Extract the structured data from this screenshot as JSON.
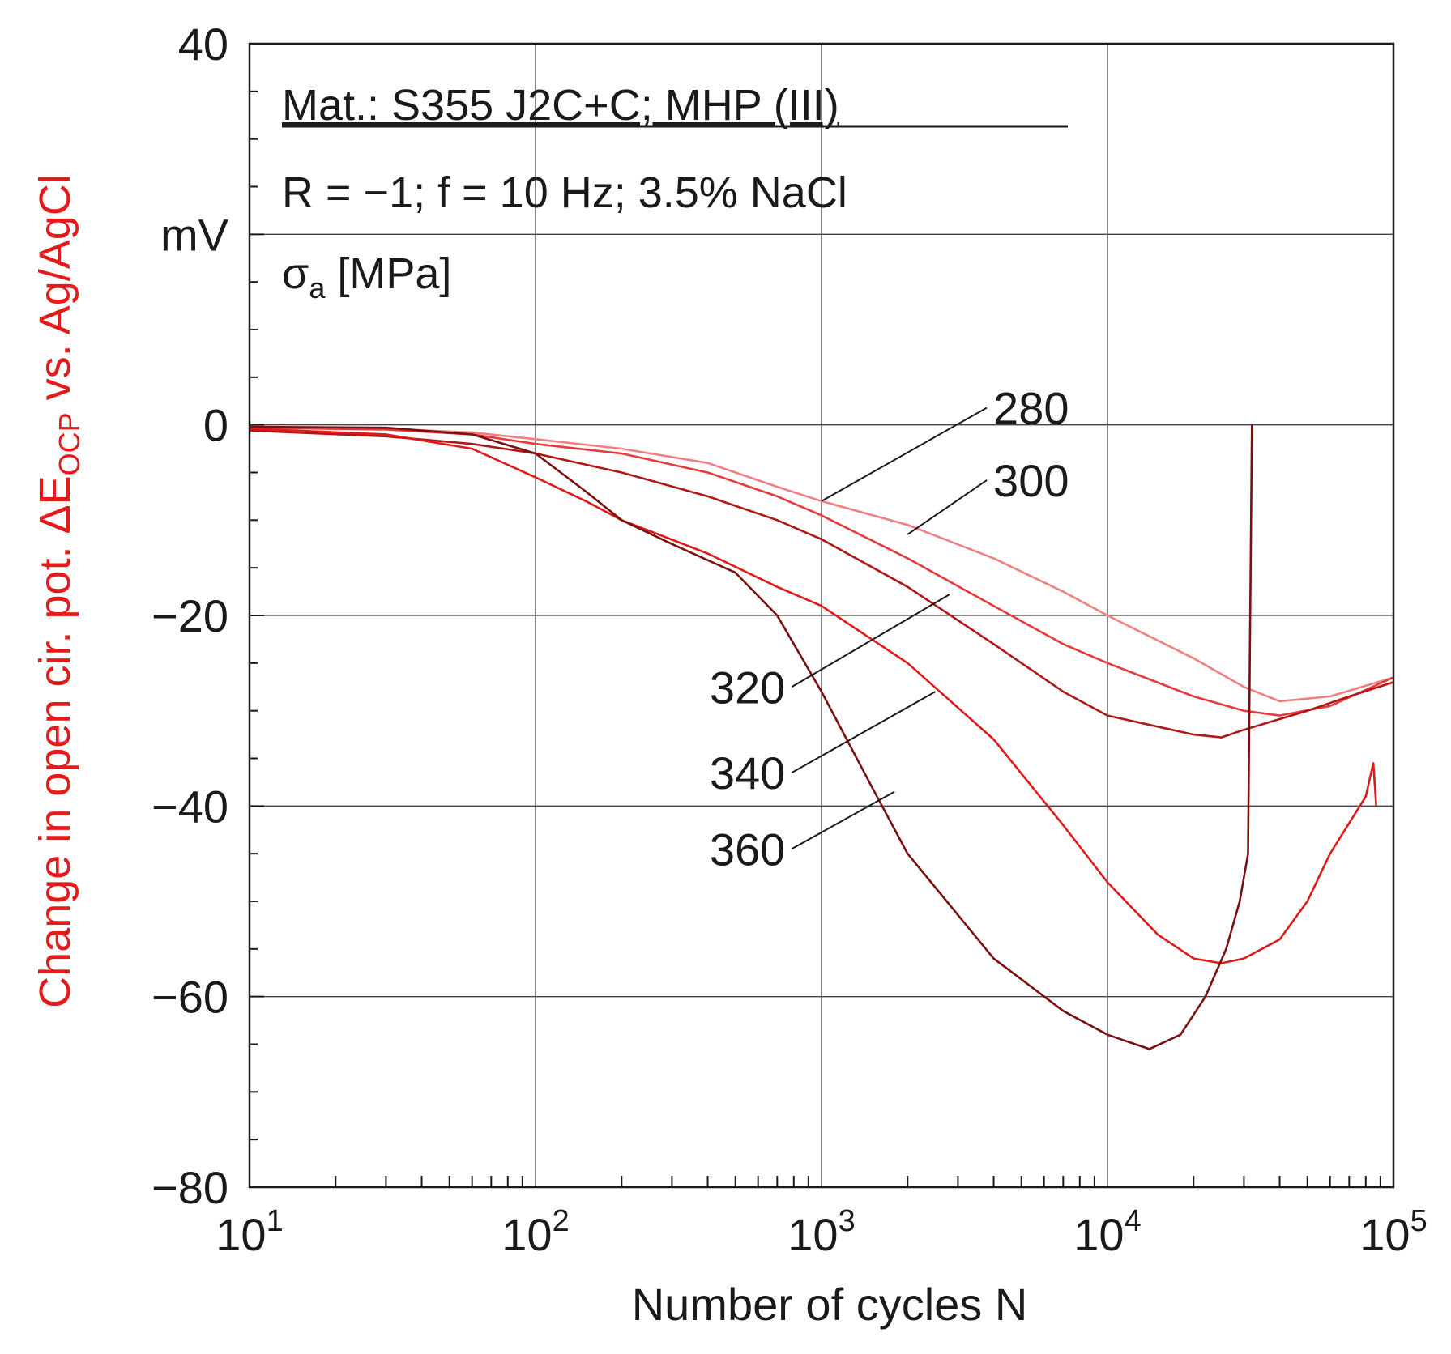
{
  "chart_data": {
    "type": "line",
    "title": "",
    "xlabel": "Number of cycles N",
    "ylabel": {
      "main": "Change in open cir. pot. ΔE",
      "subscript": "OCP",
      "suffix": " vs. Ag/AgCl"
    },
    "y_unit": "mV",
    "x_scale": "log",
    "xlim": [
      10,
      100000
    ],
    "ylim": [
      -80,
      40
    ],
    "grid": true,
    "x_ticks": [
      {
        "value": 10,
        "base": "10",
        "exp": "1"
      },
      {
        "value": 100,
        "base": "10",
        "exp": "2"
      },
      {
        "value": 1000,
        "base": "10",
        "exp": "3"
      },
      {
        "value": 10000,
        "base": "10",
        "exp": "4"
      },
      {
        "value": 100000,
        "base": "10",
        "exp": "5"
      }
    ],
    "y_ticks": [
      {
        "value": 40,
        "label": "40"
      },
      {
        "value": 20,
        "label": "mV"
      },
      {
        "value": 0,
        "label": "0"
      },
      {
        "value": -20,
        "label": "−20"
      },
      {
        "value": -40,
        "label": "−40"
      },
      {
        "value": -60,
        "label": "−60"
      },
      {
        "value": -80,
        "label": "−80"
      }
    ],
    "annotations": {
      "line1": "Mat.: S355 J2C+C; MHP (III)",
      "line2": "R = −1; f = 10 Hz; 3.5% NaCl",
      "sigma_symbol": "σ",
      "sigma_sub": "a",
      "sigma_unit": " [MPa]"
    },
    "series": [
      {
        "name": "280",
        "color": "#f08080",
        "points": [
          [
            10,
            -0.3
          ],
          [
            30,
            -0.4
          ],
          [
            60,
            -0.8
          ],
          [
            100,
            -1.5
          ],
          [
            200,
            -2.5
          ],
          [
            400,
            -4
          ],
          [
            700,
            -6.5
          ],
          [
            1000,
            -8
          ],
          [
            2000,
            -10.5
          ],
          [
            4000,
            -14
          ],
          [
            7000,
            -17.5
          ],
          [
            10000,
            -20
          ],
          [
            20000,
            -24.5
          ],
          [
            30000,
            -27.5
          ],
          [
            40000,
            -29
          ],
          [
            60000,
            -28.5
          ],
          [
            100000,
            -26.5
          ]
        ]
      },
      {
        "name": "300",
        "color": "#e83a3a",
        "points": [
          [
            10,
            -0.3
          ],
          [
            30,
            -0.5
          ],
          [
            60,
            -1.0
          ],
          [
            100,
            -2.0
          ],
          [
            200,
            -3.0
          ],
          [
            400,
            -5.0
          ],
          [
            700,
            -7.5
          ],
          [
            1000,
            -9.5
          ],
          [
            2000,
            -14
          ],
          [
            4000,
            -19
          ],
          [
            7000,
            -23
          ],
          [
            10000,
            -25
          ],
          [
            20000,
            -28.5
          ],
          [
            30000,
            -30
          ],
          [
            40000,
            -30.5
          ],
          [
            60000,
            -29.5
          ],
          [
            100000,
            -26.5
          ]
        ]
      },
      {
        "name": "320",
        "color": "#b01818",
        "points": [
          [
            10,
            -0.6
          ],
          [
            30,
            -1.2
          ],
          [
            60,
            -2.0
          ],
          [
            100,
            -3.0
          ],
          [
            200,
            -5.0
          ],
          [
            400,
            -7.5
          ],
          [
            700,
            -10
          ],
          [
            1000,
            -12
          ],
          [
            2000,
            -17
          ],
          [
            4000,
            -23
          ],
          [
            7000,
            -28
          ],
          [
            10000,
            -30.5
          ],
          [
            20000,
            -32.5
          ],
          [
            25000,
            -32.8
          ],
          [
            30000,
            -32
          ],
          [
            50000,
            -30
          ],
          [
            70000,
            -28.5
          ],
          [
            100000,
            -27
          ]
        ]
      },
      {
        "name": "340",
        "color": "#e01a1a",
        "points": [
          [
            10,
            -0.4
          ],
          [
            30,
            -1.0
          ],
          [
            60,
            -2.5
          ],
          [
            100,
            -5.5
          ],
          [
            150,
            -8
          ],
          [
            200,
            -10
          ],
          [
            400,
            -13.5
          ],
          [
            700,
            -17
          ],
          [
            1000,
            -19
          ],
          [
            2000,
            -25
          ],
          [
            4000,
            -33
          ],
          [
            7000,
            -42
          ],
          [
            10000,
            -48
          ],
          [
            15000,
            -53.5
          ],
          [
            20000,
            -56
          ],
          [
            25000,
            -56.5
          ],
          [
            30000,
            -56
          ],
          [
            40000,
            -54
          ],
          [
            50000,
            -50
          ],
          [
            60000,
            -45
          ],
          [
            80000,
            -39
          ],
          [
            85000,
            -35.5
          ],
          [
            87000,
            -40
          ]
        ]
      },
      {
        "name": "360",
        "color": "#7a1010",
        "points": [
          [
            10,
            -0.2
          ],
          [
            30,
            -0.3
          ],
          [
            60,
            -1.0
          ],
          [
            100,
            -3.0
          ],
          [
            150,
            -7
          ],
          [
            200,
            -10
          ],
          [
            300,
            -12.5
          ],
          [
            500,
            -15.5
          ],
          [
            700,
            -20
          ],
          [
            1000,
            -28
          ],
          [
            1500,
            -38
          ],
          [
            2000,
            -45
          ],
          [
            4000,
            -56
          ],
          [
            7000,
            -61.5
          ],
          [
            10000,
            -64
          ],
          [
            14000,
            -65.5
          ],
          [
            18000,
            -64
          ],
          [
            22000,
            -60
          ],
          [
            26000,
            -55
          ],
          [
            29000,
            -50
          ],
          [
            31000,
            -45
          ],
          [
            32000,
            0
          ]
        ]
      }
    ],
    "label_connectors": [
      {
        "series": "280",
        "label_at": [
          3500,
          1.8
        ],
        "point": [
          1000,
          -8
        ]
      },
      {
        "series": "300",
        "label_at": [
          3500,
          -5.8
        ],
        "point": [
          2000,
          -11.5
        ]
      },
      {
        "series": "320",
        "label_at": [
          700,
          -27.5
        ],
        "point": [
          2800,
          -17.8
        ]
      },
      {
        "series": "340",
        "label_at": [
          700,
          -36.5
        ],
        "point": [
          2500,
          -28
        ]
      },
      {
        "series": "360",
        "label_at": [
          700,
          -44.5
        ],
        "point": [
          1800,
          -38.5
        ]
      }
    ]
  }
}
